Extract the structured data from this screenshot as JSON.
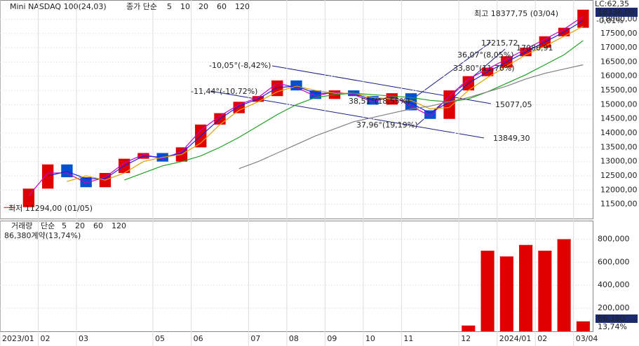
{
  "title": "Mini NASDAQ 100(24,03)",
  "price_legend": {
    "label": "종가 단순",
    "periods": [
      "5",
      "10",
      "20",
      "60",
      "120"
    ],
    "colors": [
      "#c000c0",
      "#2020e0",
      "#e0a000",
      "#20a020",
      "#808080"
    ]
  },
  "volume_legend": {
    "label": "거래량",
    "method": "단순",
    "periods": [
      "5",
      "20",
      "60",
      "120"
    ],
    "colors": [
      "#c000c0",
      "#e0a000",
      "#20a020",
      "#808080"
    ]
  },
  "chart_data": [
    {
      "type": "candlestick",
      "up_color": "#e00000",
      "down_color": "#0050d0",
      "categories": [
        "2023/01",
        null,
        "02",
        null,
        "03",
        null,
        null,
        null,
        "05",
        null,
        "06",
        null,
        null,
        "07",
        null,
        "08",
        null,
        "09",
        null,
        "10",
        null,
        "11",
        null,
        null,
        "12",
        null,
        "2024/01",
        null,
        "02",
        null,
        "03/04"
      ],
      "close": [
        11400,
        12050,
        12900,
        12450,
        12100,
        12600,
        13100,
        13300,
        13000,
        13500,
        14300,
        14700,
        15100,
        15300,
        15850,
        15500,
        15200,
        15500,
        15300,
        15000,
        15400,
        14800,
        14500,
        15500,
        16000,
        16300,
        16700,
        17000,
        17400,
        17700,
        18336
      ],
      "series": [
        {
          "name": "5",
          "color": "#c000c0",
          "values": [
            null,
            11800,
            12600,
            12600,
            12250,
            12450,
            12950,
            13250,
            13100,
            13350,
            14100,
            14600,
            15000,
            15250,
            15750,
            15600,
            15300,
            15450,
            15350,
            15100,
            15300,
            14950,
            14600,
            15300,
            15900,
            16250,
            16600,
            16950,
            17300,
            17650,
            18100
          ]
        },
        {
          "name": "10",
          "color": "#2020e0",
          "values": [
            null,
            null,
            12500,
            12650,
            12400,
            12400,
            12850,
            13200,
            13150,
            13300,
            13900,
            14500,
            14950,
            15200,
            15600,
            15650,
            15400,
            15400,
            15400,
            15150,
            15250,
            15050,
            14700,
            15100,
            15750,
            16150,
            16500,
            16850,
            17200,
            17550,
            17950
          ]
        },
        {
          "name": "20",
          "color": "#e0a000",
          "values": [
            null,
            null,
            null,
            12300,
            12500,
            12350,
            12600,
            13000,
            13150,
            13250,
            13650,
            14300,
            14800,
            15100,
            15450,
            15650,
            15500,
            15400,
            15400,
            15250,
            15200,
            15150,
            14850,
            14900,
            15500,
            15950,
            16350,
            16750,
            17050,
            17400,
            17750
          ]
        },
        {
          "name": "60",
          "color": "#20a020",
          "values": [
            null,
            null,
            null,
            null,
            null,
            null,
            12350,
            12600,
            12850,
            13000,
            13200,
            13500,
            13850,
            14250,
            14650,
            15000,
            15250,
            15350,
            15400,
            15350,
            15300,
            15250,
            15150,
            15100,
            15200,
            15450,
            15750,
            16050,
            16400,
            16750,
            17250
          ]
        },
        {
          "name": "120",
          "color": "#808080",
          "values": [
            null,
            null,
            null,
            null,
            null,
            null,
            null,
            null,
            null,
            null,
            null,
            null,
            12750,
            13000,
            13300,
            13600,
            13900,
            14150,
            14400,
            14550,
            14700,
            14850,
            14950,
            15100,
            15250,
            15450,
            15650,
            15900,
            16100,
            16250,
            16400
          ]
        }
      ],
      "ylim": [
        11000,
        18675
      ],
      "yticks": [
        {
          "value": 11500,
          "label": "11500,00"
        },
        {
          "value": 12000,
          "label": "12000,00"
        },
        {
          "value": 12500,
          "label": "12500,00"
        },
        {
          "value": 13000,
          "label": "13000,00"
        },
        {
          "value": 13500,
          "label": "13500,00"
        },
        {
          "value": 14000,
          "label": "14000,00"
        },
        {
          "value": 14500,
          "label": "14500,00"
        },
        {
          "value": 15000,
          "label": "15000,00"
        },
        {
          "value": 15500,
          "label": "15500,00"
        },
        {
          "value": 16000,
          "label": "16000,00"
        },
        {
          "value": 16500,
          "label": "16500,00"
        },
        {
          "value": 17000,
          "label": "17000,00"
        },
        {
          "value": 17500,
          "label": "17500,00"
        },
        {
          "value": 18000,
          "label": "18000,00"
        }
      ],
      "grid": true,
      "annotations": [
        "최저 11294,00 (01/05)",
        "최고 18377,75 (03/04)",
        "LC:62,35",
        "-0,01%",
        "-10,05°(-8,42%)",
        "-11,44°(-10,72%)",
        "38,51°(18,55%)",
        "37,96°(19,19%)",
        "15077,05",
        "13849,30",
        "17215,72",
        "36,07°(8,05%)",
        "33,80°(11,76%)",
        "17086,91"
      ],
      "last_price_label": "18336,00"
    },
    {
      "type": "bar",
      "values": [
        null,
        null,
        null,
        null,
        null,
        null,
        null,
        null,
        null,
        null,
        null,
        null,
        null,
        null,
        null,
        null,
        null,
        null,
        null,
        null,
        null,
        null,
        null,
        null,
        50000,
        700000,
        650000,
        750000,
        700000,
        800000,
        86380
      ],
      "ylim": [
        0,
        955000
      ],
      "yticks": [
        {
          "value": 200000,
          "label": "200,000"
        },
        {
          "value": 400000,
          "label": "400,000"
        },
        {
          "value": 600000,
          "label": "600,000"
        },
        {
          "value": 800000,
          "label": "800,000"
        }
      ],
      "summary": "86,380계약(13,74%)",
      "last_label": "86,380",
      "last_pct": "13,74%"
    }
  ]
}
